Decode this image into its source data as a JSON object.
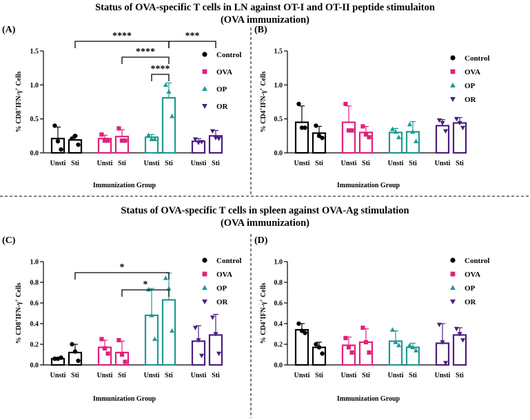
{
  "titles": {
    "top_line1": "Status of OVA-specific T cells in LN against OT-I and OT-II peptide stimulaiton",
    "top_line2": "(OVA immunization)",
    "bottom_line1": "Status of OVA-specific T cells in spleen against OVA-Ag stimulation",
    "bottom_line2": "(OVA immunization)"
  },
  "colors": {
    "Control": "#000000",
    "OVA": "#e0207a",
    "OP": "#1e9a94",
    "OR": "#4b1f80"
  },
  "chart_data": [
    {
      "type": "bar",
      "panel_label": "(A)",
      "ylabel_prefix": "% CD8",
      "ylabel_sup": "+",
      "ylabel_mid": "IFN-γ",
      "ylabel_sup2": "+",
      "ylabel_suffix": " Cells",
      "xlabel": "Immunization Group",
      "ylim": [
        0,
        1.5
      ],
      "yticks": [
        0,
        0.5,
        1.0,
        1.5
      ],
      "ytick_labels": [
        "0.0",
        "0.5",
        "1.0",
        "1.5"
      ],
      "categories": [
        "Unsti",
        "Sti"
      ],
      "legend": [
        "Control",
        "OVA",
        "OP",
        "OR"
      ],
      "series": [
        {
          "name": "Control",
          "marker": "circle",
          "values": [
            0.21,
            0.19
          ],
          "sd": [
            0.17,
            0.06
          ],
          "points": [
            [
              0.4,
              0.17,
              0.05
            ],
            [
              0.21,
              0.25,
              0.12
            ]
          ]
        },
        {
          "name": "OVA",
          "marker": "square",
          "values": [
            0.21,
            0.24
          ],
          "sd": [
            0.05,
            0.1
          ],
          "points": [
            [
              0.27,
              0.18,
              0.18
            ],
            [
              0.36,
              0.18,
              0.18
            ]
          ]
        },
        {
          "name": "OP",
          "marker": "triangle-up",
          "values": [
            0.23,
            0.81
          ],
          "sd": [
            0.04,
            0.22
          ],
          "points": [
            [
              0.26,
              0.2,
              0.2
            ],
            [
              1.0,
              0.9,
              0.54
            ]
          ]
        },
        {
          "name": "OR",
          "marker": "triangle-down",
          "values": [
            0.17,
            0.25
          ],
          "sd": [
            0.04,
            0.08
          ],
          "points": [
            [
              0.2,
              0.15,
              0.16
            ],
            [
              0.32,
              0.22,
              0.21
            ]
          ]
        }
      ],
      "significance": [
        {
          "from": "Control.Sti",
          "to": "OP.Sti",
          "label": "****"
        },
        {
          "from": "OP.Sti",
          "to": "OR.Sti",
          "label": "***"
        },
        {
          "from": "OVA.Sti",
          "to": "OP.Sti",
          "label": "****"
        },
        {
          "from": "OP.Unsti",
          "to": "OP.Sti",
          "label": "****"
        }
      ]
    },
    {
      "type": "bar",
      "panel_label": "(B)",
      "ylabel_prefix": "% CD4",
      "ylabel_sup": "+",
      "ylabel_mid": "IFN-γ",
      "ylabel_sup2": "+",
      "ylabel_suffix": " Cells",
      "xlabel": "Immunization Group",
      "ylim": [
        0,
        1.5
      ],
      "yticks": [
        0,
        0.5,
        1.0,
        1.5
      ],
      "ytick_labels": [
        "0.0",
        "0.5",
        "1.0",
        "1.5"
      ],
      "categories": [
        "Unsti",
        "Sti"
      ],
      "legend": [
        "Control",
        "OVA",
        "OP",
        "OR"
      ],
      "series": [
        {
          "name": "Control",
          "marker": "circle",
          "values": [
            0.45,
            0.29
          ],
          "sd": [
            0.24,
            0.1
          ],
          "points": [
            [
              0.72,
              0.37,
              0.37
            ],
            [
              0.4,
              0.25,
              0.22
            ]
          ]
        },
        {
          "name": "OVA",
          "marker": "square",
          "values": [
            0.45,
            0.3
          ],
          "sd": [
            0.24,
            0.09
          ],
          "points": [
            [
              0.72,
              0.33,
              0.33
            ],
            [
              0.39,
              0.27,
              0.23
            ]
          ]
        },
        {
          "name": "OP",
          "marker": "triangle-up",
          "values": [
            0.3,
            0.31
          ],
          "sd": [
            0.06,
            0.15
          ],
          "points": [
            [
              0.35,
              0.31,
              0.23
            ],
            [
              0.42,
              0.31,
              0.17
            ]
          ]
        },
        {
          "name": "OR",
          "marker": "triangle-down",
          "values": [
            0.4,
            0.44
          ],
          "sd": [
            0.09,
            0.08
          ],
          "points": [
            [
              0.48,
              0.44,
              0.32
            ],
            [
              0.5,
              0.44,
              0.37
            ]
          ]
        }
      ],
      "significance": []
    },
    {
      "type": "bar",
      "panel_label": "(C)",
      "ylabel_prefix": "% CD8",
      "ylabel_sup": "+",
      "ylabel_mid": "IFN-γ",
      "ylabel_sup2": "+",
      "ylabel_suffix": " Cells",
      "xlabel": "Immunization Group",
      "ylim": [
        0,
        1.0
      ],
      "yticks": [
        0,
        0.2,
        0.4,
        0.6,
        0.8,
        1.0
      ],
      "ytick_labels": [
        "0.0",
        "0.2",
        "0.4",
        "0.6",
        "0.8",
        "1.0"
      ],
      "categories": [
        "Unsti",
        "Sti"
      ],
      "legend": [
        "Control",
        "OVA",
        "OP",
        "OR"
      ],
      "series": [
        {
          "name": "Control",
          "marker": "circle",
          "values": [
            0.06,
            0.12
          ],
          "sd": [
            0.01,
            0.08
          ],
          "points": [
            [
              0.06,
              0.06,
              0.07
            ],
            [
              0.2,
              0.13,
              0.04
            ]
          ]
        },
        {
          "name": "OVA",
          "marker": "square",
          "values": [
            0.17,
            0.12
          ],
          "sd": [
            0.07,
            0.11
          ],
          "points": [
            [
              0.25,
              0.16,
              0.11
            ],
            [
              0.24,
              0.1,
              0.03
            ]
          ]
        },
        {
          "name": "OP",
          "marker": "triangle-up",
          "values": [
            0.48,
            0.63
          ],
          "sd": [
            0.26,
            0.26
          ],
          "points": [
            [
              0.73,
              0.48,
              0.25
            ],
            [
              0.84,
              0.74,
              0.33
            ]
          ]
        },
        {
          "name": "OR",
          "marker": "triangle-down",
          "values": [
            0.23,
            0.29
          ],
          "sd": [
            0.15,
            0.2
          ],
          "points": [
            [
              0.36,
              0.24,
              0.09
            ],
            [
              0.46,
              0.3,
              0.11
            ]
          ]
        }
      ],
      "significance": [
        {
          "from": "Control.Sti",
          "to": "OP.Sti",
          "label": "*"
        },
        {
          "from": "OVA.Sti",
          "to": "OP.Sti",
          "label": "*"
        }
      ]
    },
    {
      "type": "bar",
      "panel_label": "(D)",
      "ylabel_prefix": "% CD4",
      "ylabel_sup": "+",
      "ylabel_mid": "IFN-γ",
      "ylabel_sup2": "+",
      "ylabel_suffix": " Cells",
      "xlabel": "Immunization Group",
      "ylim": [
        0,
        1.0
      ],
      "yticks": [
        0,
        0.2,
        0.4,
        0.6,
        0.8,
        1.0
      ],
      "ytick_labels": [
        "0.0",
        "0.2",
        "0.4",
        "0.6",
        "0.8",
        "1.0"
      ],
      "categories": [
        "Unsti",
        "Sti"
      ],
      "legend": [
        "Control",
        "OVA",
        "OP",
        "OR"
      ],
      "series": [
        {
          "name": "Control",
          "marker": "circle",
          "values": [
            0.34,
            0.17
          ],
          "sd": [
            0.06,
            0.05
          ],
          "points": [
            [
              0.4,
              0.33,
              0.31
            ],
            [
              0.2,
              0.17,
              0.11
            ]
          ]
        },
        {
          "name": "OVA",
          "marker": "square",
          "values": [
            0.19,
            0.22
          ],
          "sd": [
            0.08,
            0.13
          ],
          "points": [
            [
              0.26,
              0.17,
              0.12
            ],
            [
              0.36,
              0.22,
              0.12
            ]
          ]
        },
        {
          "name": "OP",
          "marker": "triangle-up",
          "values": [
            0.23,
            0.17
          ],
          "sd": [
            0.1,
            0.04
          ],
          "points": [
            [
              0.34,
              0.22,
              0.19
            ],
            [
              0.19,
              0.17,
              0.14
            ]
          ]
        },
        {
          "name": "OR",
          "marker": "triangle-down",
          "values": [
            0.21,
            0.29
          ],
          "sd": [
            0.19,
            0.07
          ],
          "points": [
            [
              0.39,
              0.22,
              0.02
            ],
            [
              0.35,
              0.3,
              0.24
            ]
          ]
        }
      ],
      "significance": []
    }
  ]
}
